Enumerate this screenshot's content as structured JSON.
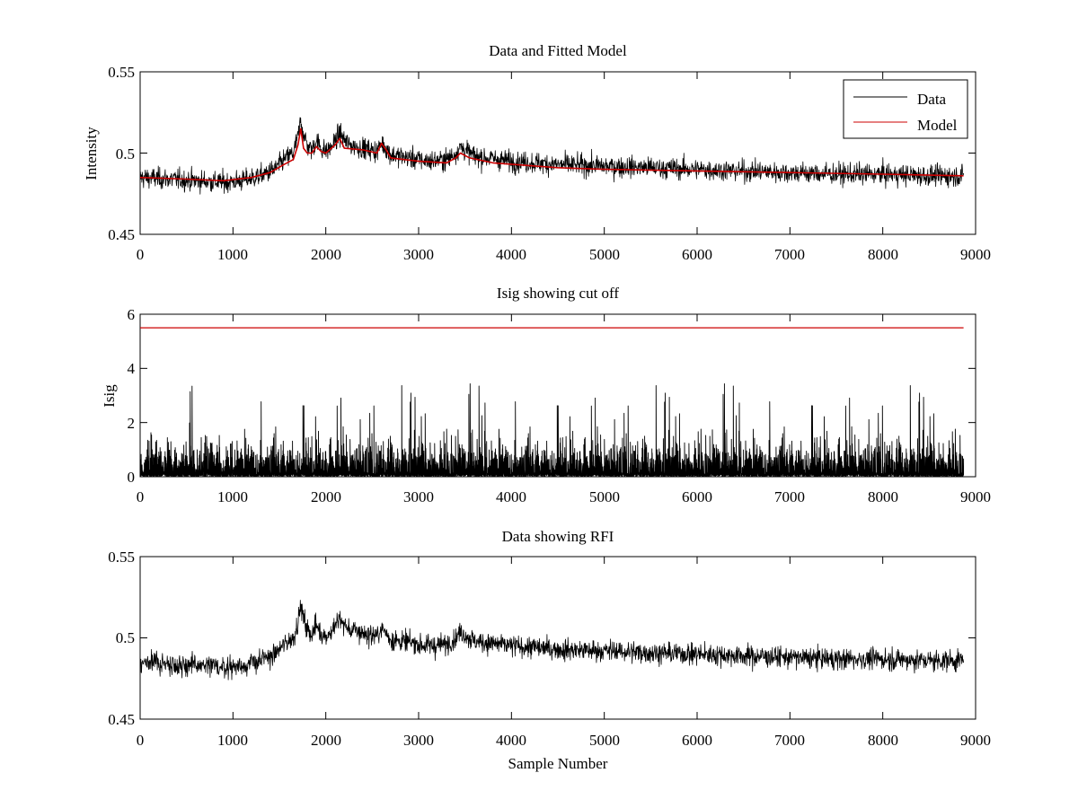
{
  "chart_data": [
    {
      "type": "line",
      "title": "Data and Fitted Model",
      "xlabel": "",
      "ylabel": "Intensity",
      "xlim": [
        0,
        9000
      ],
      "ylim": [
        0.45,
        0.55
      ],
      "xticks": [
        "0",
        "1000",
        "2000",
        "3000",
        "4000",
        "5000",
        "6000",
        "7000",
        "8000",
        "9000"
      ],
      "yticks": [
        "0.45",
        "0.5",
        "0.55"
      ],
      "legend": "top-right",
      "grid": false,
      "series": [
        {
          "name": "Data",
          "color": "#000000",
          "noise": 0.0045,
          "x": [
            0,
            300,
            600,
            900,
            1100,
            1300,
            1450,
            1550,
            1650,
            1700,
            1730,
            1760,
            1800,
            1850,
            1900,
            1950,
            2000,
            2050,
            2100,
            2150,
            2200,
            2250,
            2400,
            2550,
            2600,
            2650,
            2700,
            2900,
            3100,
            3300,
            3400,
            3450,
            3500,
            3600,
            4000,
            4500,
            5000,
            5500,
            6000,
            6500,
            7000,
            7500,
            8000,
            8500,
            8870
          ],
          "y": [
            0.485,
            0.484,
            0.483,
            0.482,
            0.483,
            0.486,
            0.49,
            0.496,
            0.5,
            0.51,
            0.52,
            0.512,
            0.505,
            0.502,
            0.508,
            0.503,
            0.501,
            0.503,
            0.507,
            0.512,
            0.508,
            0.505,
            0.503,
            0.501,
            0.506,
            0.503,
            0.499,
            0.497,
            0.495,
            0.496,
            0.5,
            0.504,
            0.502,
            0.498,
            0.495,
            0.493,
            0.492,
            0.491,
            0.49,
            0.489,
            0.488,
            0.487,
            0.487,
            0.486,
            0.486
          ]
        },
        {
          "name": "Model",
          "color": "#cc0000",
          "x": [
            0,
            500,
            900,
            1200,
            1400,
            1550,
            1650,
            1700,
            1730,
            1760,
            1800,
            1850,
            1900,
            1950,
            2000,
            2100,
            2150,
            2200,
            2400,
            2550,
            2600,
            2650,
            2700,
            3000,
            3300,
            3400,
            3450,
            3550,
            3800,
            4500,
            5000,
            6000,
            7000,
            8000,
            8870
          ],
          "y": [
            0.485,
            0.484,
            0.483,
            0.485,
            0.488,
            0.493,
            0.496,
            0.505,
            0.515,
            0.503,
            0.5,
            0.5,
            0.504,
            0.501,
            0.5,
            0.505,
            0.509,
            0.503,
            0.502,
            0.5,
            0.506,
            0.502,
            0.497,
            0.495,
            0.494,
            0.497,
            0.5,
            0.497,
            0.494,
            0.491,
            0.49,
            0.489,
            0.488,
            0.487,
            0.486
          ]
        }
      ]
    },
    {
      "type": "line",
      "title": "Isig showing cut off",
      "xlabel": "",
      "ylabel": "Isig",
      "xlim": [
        0,
        9000
      ],
      "ylim": [
        0,
        6
      ],
      "xticks": [
        "0",
        "1000",
        "2000",
        "3000",
        "4000",
        "5000",
        "6000",
        "7000",
        "8000",
        "9000"
      ],
      "yticks": [
        "0",
        "2",
        "4",
        "6"
      ],
      "grid": false,
      "series": [
        {
          "color": "#000000",
          "x_end": 8870,
          "typical": 1.2,
          "max": 3.5
        },
        {
          "color": "#cc0000",
          "x": [
            0,
            8870
          ],
          "y": [
            5.5,
            5.5
          ]
        }
      ]
    },
    {
      "type": "line",
      "title": "Data showing RFI",
      "xlabel": "Sample Number",
      "ylabel": "",
      "xlim": [
        0,
        9000
      ],
      "ylim": [
        0.45,
        0.55
      ],
      "xticks": [
        "0",
        "1000",
        "2000",
        "3000",
        "4000",
        "5000",
        "6000",
        "7000",
        "8000",
        "9000"
      ],
      "yticks": [
        "0.45",
        "0.5",
        "0.55"
      ],
      "grid": false,
      "series": [
        {
          "color": "#000000",
          "noise": 0.0045,
          "x": [
            0,
            300,
            600,
            900,
            1100,
            1300,
            1450,
            1550,
            1650,
            1700,
            1730,
            1760,
            1800,
            1850,
            1900,
            1950,
            2000,
            2050,
            2100,
            2150,
            2200,
            2250,
            2400,
            2550,
            2600,
            2650,
            2700,
            2900,
            3100,
            3300,
            3400,
            3450,
            3500,
            3600,
            4000,
            4500,
            5000,
            5500,
            6000,
            6500,
            7000,
            7500,
            8000,
            8500,
            8870
          ],
          "y": [
            0.485,
            0.484,
            0.483,
            0.482,
            0.483,
            0.486,
            0.49,
            0.496,
            0.5,
            0.51,
            0.52,
            0.512,
            0.505,
            0.502,
            0.508,
            0.503,
            0.501,
            0.503,
            0.507,
            0.512,
            0.508,
            0.505,
            0.503,
            0.501,
            0.506,
            0.503,
            0.499,
            0.497,
            0.495,
            0.496,
            0.5,
            0.504,
            0.502,
            0.498,
            0.495,
            0.493,
            0.492,
            0.491,
            0.49,
            0.489,
            0.488,
            0.487,
            0.487,
            0.486,
            0.486
          ]
        }
      ]
    }
  ]
}
